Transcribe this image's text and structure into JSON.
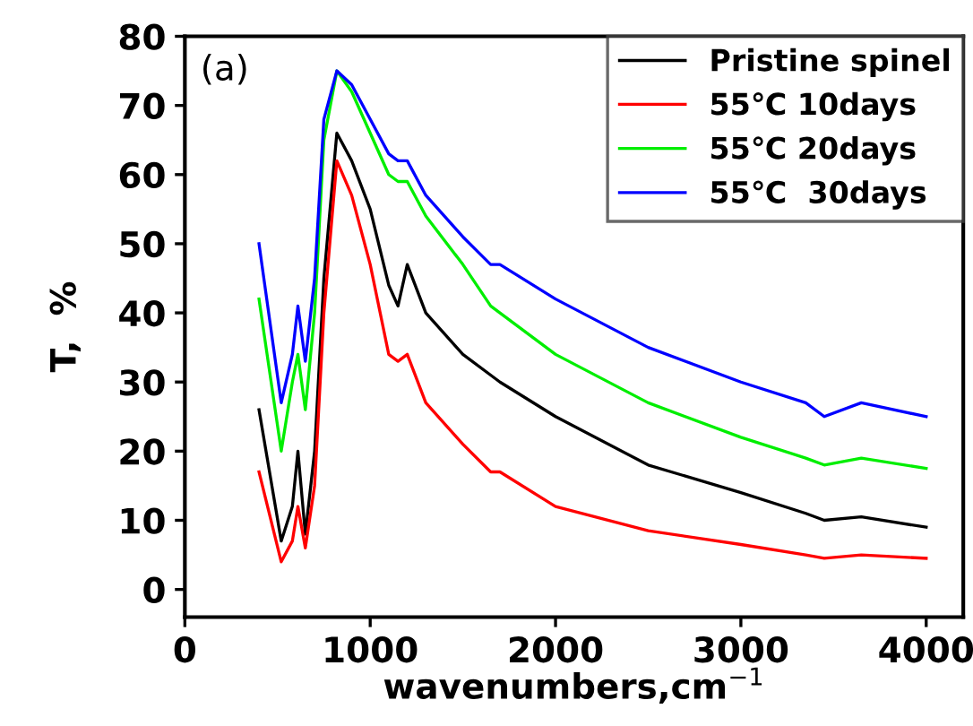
{
  "chart_data": {
    "type": "line",
    "xlabel": "wavenumbers,cm$^{−1}$",
    "ylabel": "T,  %",
    "annotations": [
      "(a)"
    ],
    "xlim": [
      0,
      4200
    ],
    "ylim": [
      -4,
      80
    ],
    "xticks": [
      0,
      1000,
      2000,
      3000,
      4000
    ],
    "yticks": [
      0,
      10,
      20,
      30,
      40,
      50,
      60,
      70,
      80
    ],
    "grid": false,
    "legend": "top right",
    "marker": "none",
    "line_style": "solid",
    "x": [
      400,
      520,
      580,
      610,
      650,
      700,
      750,
      820,
      900,
      1000,
      1100,
      1150,
      1200,
      1300,
      1500,
      1650,
      1700,
      2000,
      2500,
      3000,
      3350,
      3450,
      3650,
      4000
    ],
    "series": [
      {
        "name": "Pristine spinel",
        "color": "#000000",
        "values": [
          26,
          7,
          12,
          20,
          8,
          20,
          45,
          66,
          62,
          55,
          44,
          41,
          47,
          40,
          34,
          31,
          30,
          25,
          18,
          14,
          11,
          10,
          10.5,
          9
        ]
      },
      {
        "name": "55℃ 10days",
        "color": "#ff0000",
        "values": [
          17,
          4,
          7,
          12,
          6,
          15,
          40,
          62,
          57,
          47,
          34,
          33,
          34,
          27,
          21,
          17,
          17,
          12,
          8.5,
          6.5,
          5,
          4.5,
          5,
          4.5
        ]
      },
      {
        "name": "55℃ 20days",
        "color": "#00ee00",
        "values": [
          42,
          20,
          30,
          34,
          26,
          40,
          65,
          75,
          72,
          66,
          60,
          59,
          59,
          54,
          47,
          41,
          40,
          34,
          27,
          22,
          19,
          18,
          19,
          17.5
        ]
      },
      {
        "name": "55℃  30days",
        "color": "#0000ff",
        "values": [
          50,
          27,
          34,
          41,
          33,
          45,
          68,
          75,
          73,
          68,
          63,
          62,
          62,
          57,
          51,
          47,
          47,
          42,
          35,
          30,
          27,
          25,
          27,
          25
        ]
      }
    ]
  }
}
